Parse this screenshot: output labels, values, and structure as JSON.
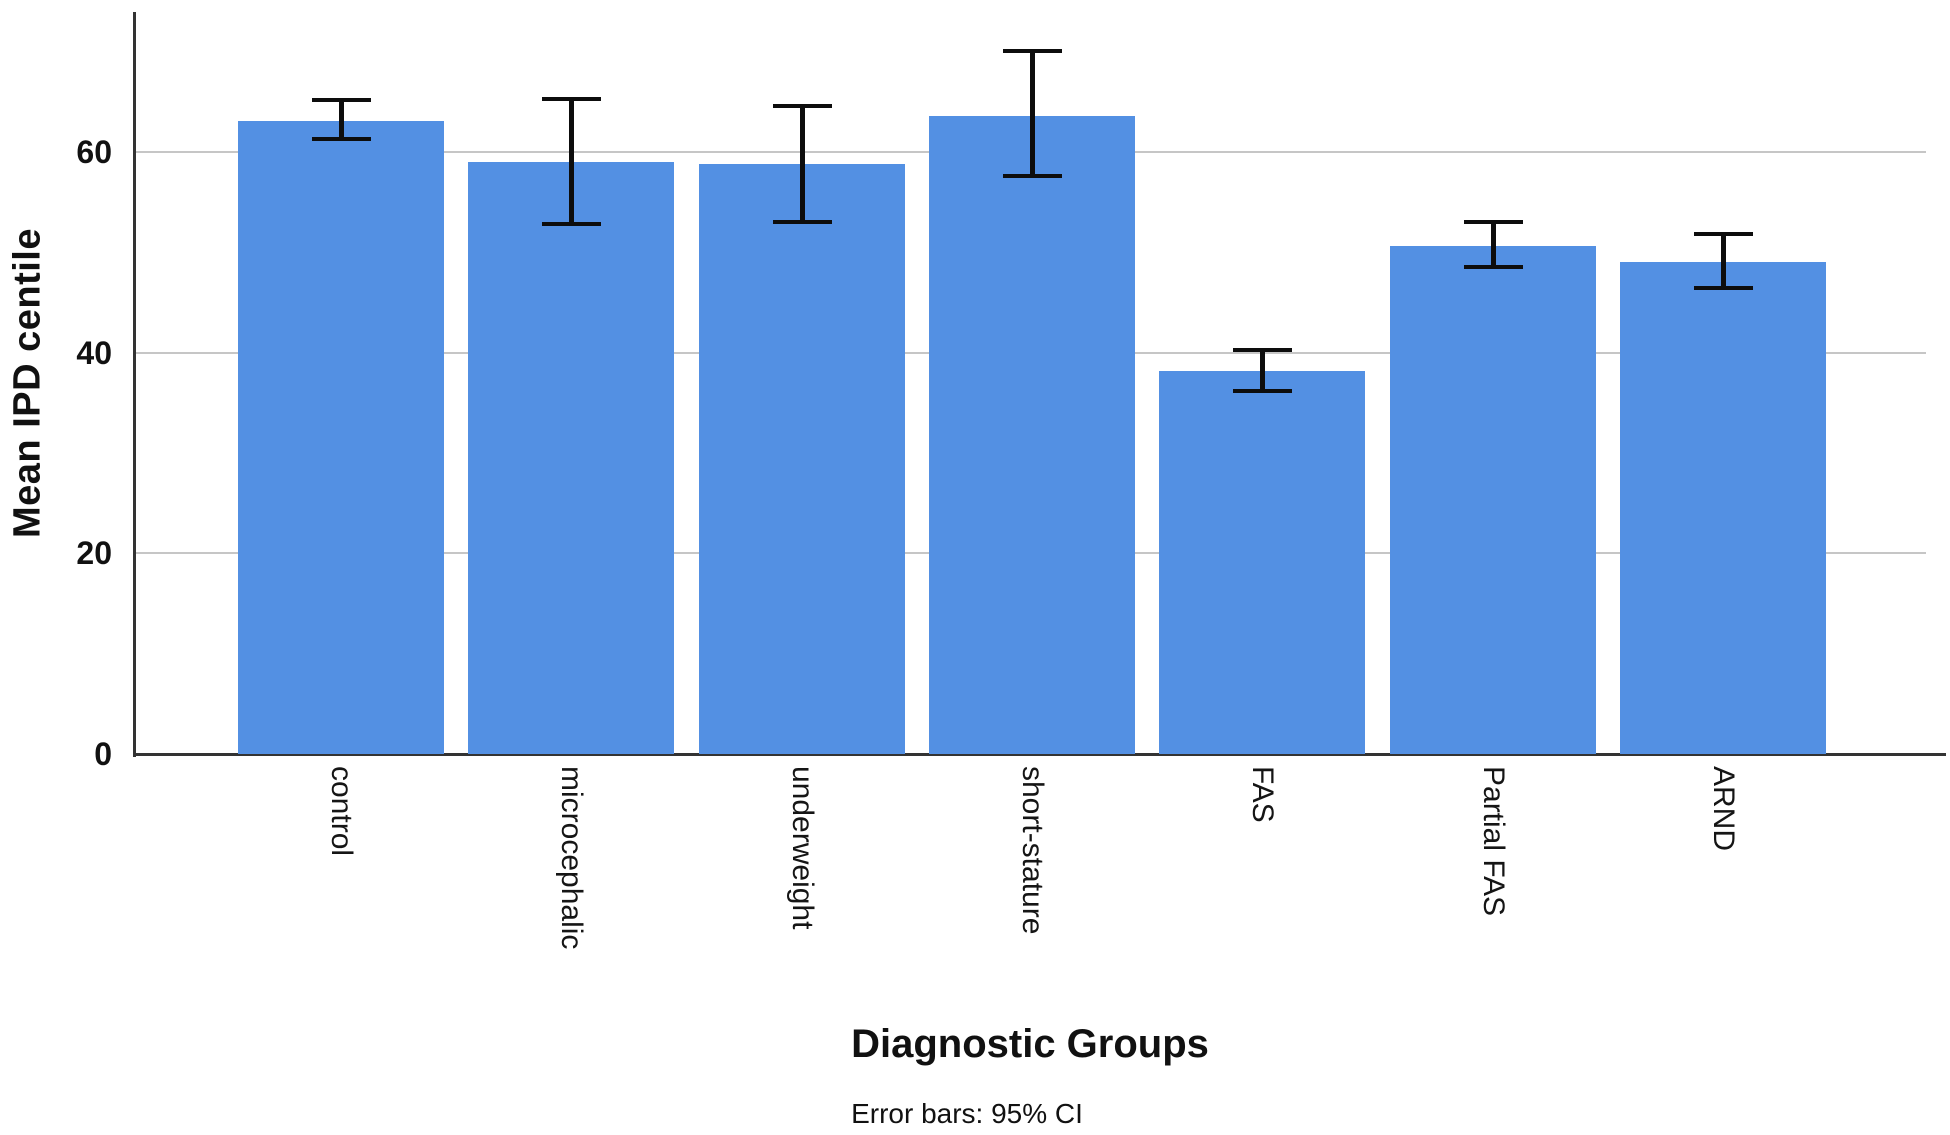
{
  "chart_data": {
    "type": "bar",
    "title": "",
    "xlabel": "Diagnostic Groups",
    "ylabel": "Mean IPD centile",
    "footnote": "Error bars: 95% CI",
    "categories": [
      "control",
      "microcephalic",
      "underweight",
      "short-stature",
      "FAS",
      "Partial FAS",
      "ARND"
    ],
    "values": [
      63.1,
      59.0,
      58.8,
      63.6,
      38.2,
      50.7,
      49.1
    ],
    "error_bars": {
      "label": "95% CI",
      "low": [
        61.3,
        52.9,
        53.1,
        57.6,
        36.2,
        48.6,
        46.5
      ],
      "high": [
        65.2,
        65.3,
        64.6,
        70.1,
        40.3,
        53.1,
        51.9
      ]
    },
    "yticks": [
      0,
      20,
      40,
      60
    ],
    "ylim": [
      0,
      74
    ],
    "grid": "horizontal-gridlines-at-yticks",
    "legend_position": "none",
    "bar_color": "#5390e3"
  },
  "colors": {
    "bar": "#5390e3",
    "gridline": "#c6c6c6",
    "axis": "#333333",
    "error_bar": "#0d0d0d",
    "text": "#111111",
    "background": "#ffffff"
  }
}
